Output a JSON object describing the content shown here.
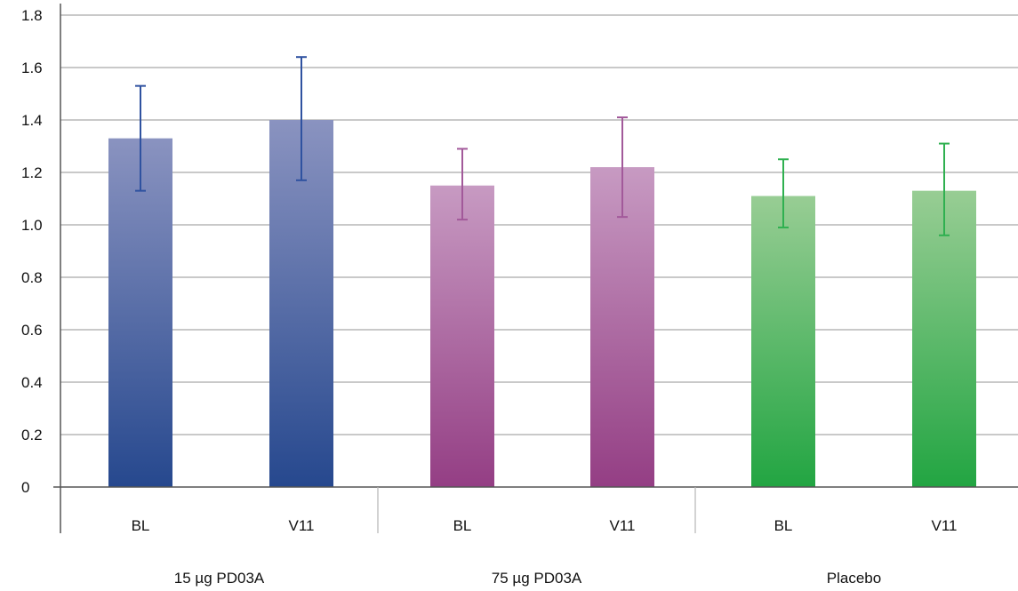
{
  "chart_data": {
    "type": "bar",
    "title": "",
    "xlabel": "",
    "ylabel": "",
    "ylim": [
      0,
      1.8
    ],
    "yticks": [
      "0",
      "0.2",
      "0.4",
      "0.6",
      "0.8",
      "1.0",
      "1.2",
      "1.4",
      "1.6",
      "1.8"
    ],
    "grid": true,
    "groups": [
      {
        "label": "15 µg PD03A",
        "color_top": "#8a93c0",
        "color_bottom": "#26488e",
        "error_color": "#2f52a0",
        "bars": [
          {
            "category": "BL",
            "value": 1.33,
            "error_low": 1.13,
            "error_high": 1.53
          },
          {
            "category": "V11",
            "value": 1.4,
            "error_low": 1.17,
            "error_high": 1.64
          }
        ]
      },
      {
        "label": "75 µg PD03A",
        "color_top": "#c79ac2",
        "color_bottom": "#943e84",
        "error_color": "#a2599a",
        "bars": [
          {
            "category": "BL",
            "value": 1.15,
            "error_low": 1.02,
            "error_high": 1.29
          },
          {
            "category": "V11",
            "value": 1.22,
            "error_low": 1.03,
            "error_high": 1.41
          }
        ]
      },
      {
        "label": "Placebo",
        "color_top": "#98cd94",
        "color_bottom": "#22a542",
        "error_color": "#2fb050",
        "bars": [
          {
            "category": "BL",
            "value": 1.11,
            "error_low": 0.99,
            "error_high": 1.25
          },
          {
            "category": "V11",
            "value": 1.13,
            "error_low": 0.96,
            "error_high": 1.31
          }
        ]
      }
    ]
  }
}
